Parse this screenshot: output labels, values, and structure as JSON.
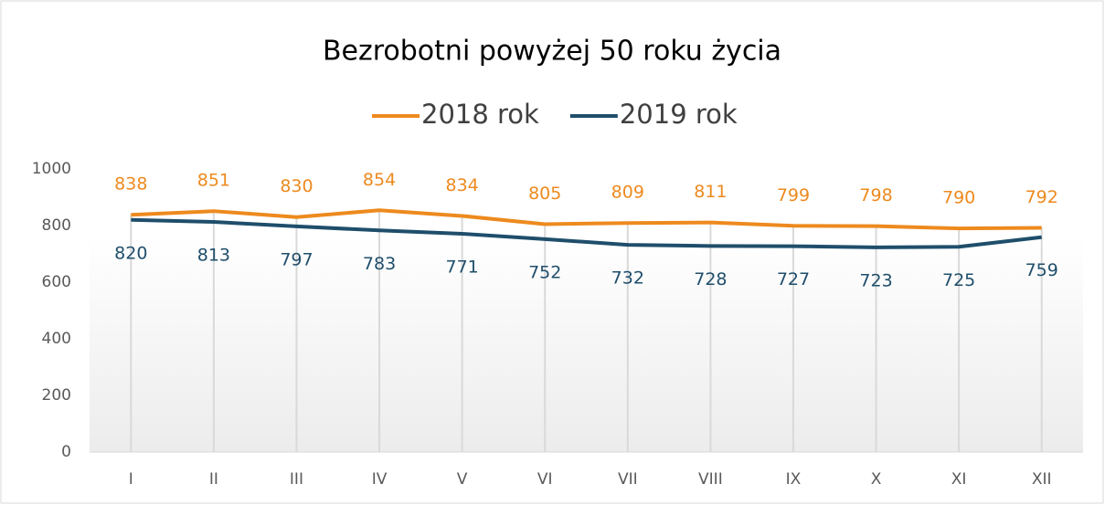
{
  "chart_data": {
    "type": "line",
    "title": "Bezrobotni powyżej 50 roku życia",
    "categories": [
      "I",
      "II",
      "III",
      "IV",
      "V",
      "VI",
      "VII",
      "VIII",
      "IX",
      "X",
      "XI",
      "XII"
    ],
    "series": [
      {
        "name": "2018 rok",
        "color": "#ed8a1e",
        "values": [
          838,
          851,
          830,
          854,
          834,
          805,
          809,
          811,
          799,
          798,
          790,
          792
        ]
      },
      {
        "name": "2019 rok",
        "color": "#1f4e6b",
        "values": [
          820,
          813,
          797,
          783,
          771,
          752,
          732,
          728,
          727,
          723,
          725,
          759
        ]
      }
    ],
    "ylim": [
      0,
      1000
    ],
    "yticks": [
      0,
      200,
      400,
      600,
      800,
      1000
    ],
    "legend": "top"
  }
}
